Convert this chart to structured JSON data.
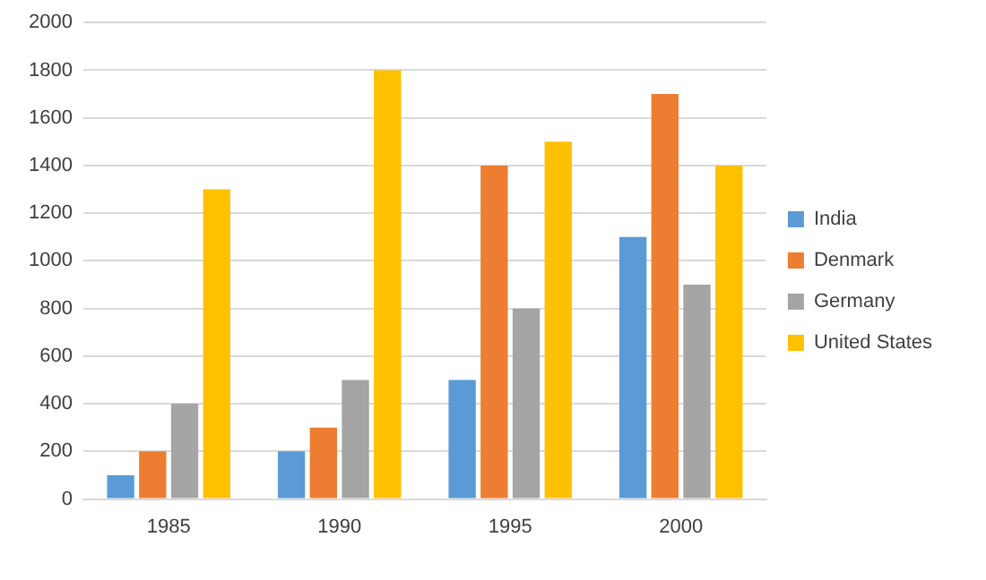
{
  "chart_data": {
    "type": "bar",
    "categories": [
      "1985",
      "1990",
      "1995",
      "2000"
    ],
    "series": [
      {
        "name": "India",
        "color": "#5b9bd5",
        "values": [
          100,
          200,
          500,
          1100
        ]
      },
      {
        "name": "Denmark",
        "color": "#ed7d31",
        "values": [
          200,
          300,
          1400,
          1700
        ]
      },
      {
        "name": "Germany",
        "color": "#a5a5a5",
        "values": [
          400,
          500,
          800,
          900
        ]
      },
      {
        "name": "United States",
        "color": "#ffc000",
        "values": [
          1300,
          1800,
          1500,
          1400
        ]
      }
    ],
    "ylim": [
      0,
      2000
    ],
    "yticks": [
      0,
      200,
      400,
      600,
      800,
      1000,
      1200,
      1400,
      1600,
      1800,
      2000
    ],
    "grid": "y",
    "legend": "right"
  }
}
